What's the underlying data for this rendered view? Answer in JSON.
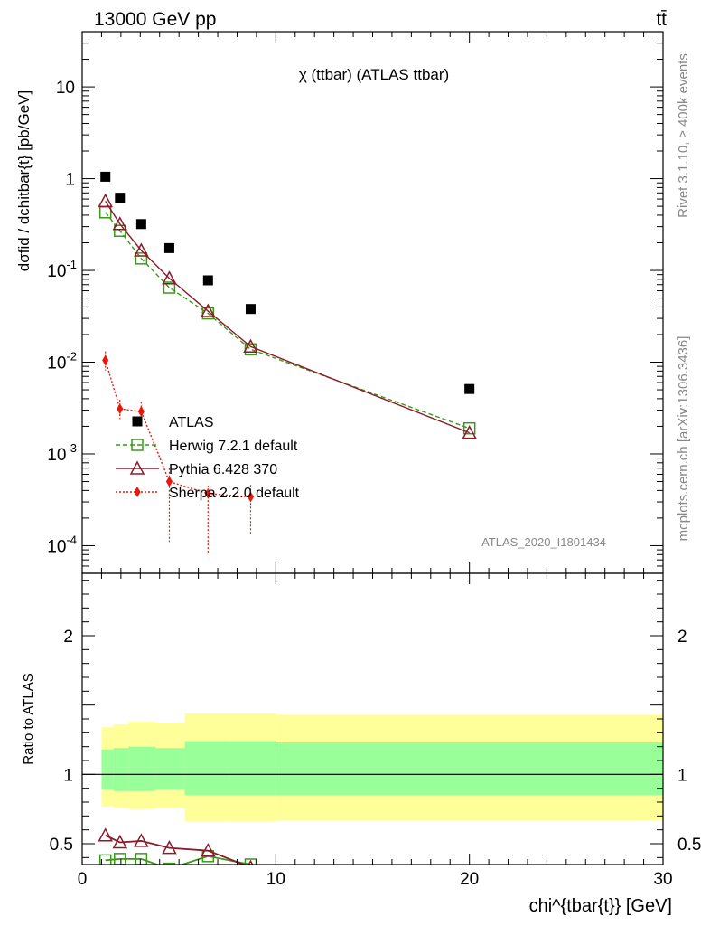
{
  "header": {
    "energy_label": "13000 GeV pp",
    "process_label": "tt̄",
    "plot_title": "χ (ttbar) (ATLAS ttbar)",
    "side_label_rivet": "Rivet 3.1.10, ≥ 400k events",
    "side_label_site": "mcplots.cern.ch [arXiv:1306.3436]",
    "analysis_id": "ATLAS_2020_I1801434"
  },
  "axes": {
    "main_ylabel": "dσfid / dchitbar{t} [pb/GeV]",
    "ratio_ylabel": "Ratio to ATLAS",
    "xlabel": "chi^{tbar{t}} [GeV]"
  },
  "chart_data": [
    {
      "type": "scatter",
      "panel": "main",
      "yscale": "log",
      "xlim": [
        0,
        30
      ],
      "ylim": [
        5e-05,
        40
      ],
      "x_ticks": [
        0,
        10,
        20,
        30
      ],
      "x_tick_labels": [
        "0",
        "10",
        "20",
        "30"
      ],
      "y_ticks": [
        0.0001,
        0.001,
        0.01,
        0.1,
        1,
        10
      ],
      "y_tick_labels": [
        "10^-4",
        "10^-3",
        "10^-2",
        "10^-1",
        "1",
        "10"
      ],
      "legend_position": "bottom-left",
      "series": [
        {
          "name": "ATLAS",
          "color": "#000000",
          "marker": "square",
          "x": [
            1.2,
            1.95,
            3.05,
            4.5,
            6.5,
            8.7,
            20.0
          ],
          "y": [
            1.05,
            0.62,
            0.32,
            0.175,
            0.078,
            0.038,
            0.0051
          ]
        },
        {
          "name": "Herwig 7.2.1 default",
          "color": "#3a9a18",
          "marker": "open-square",
          "line": "dashed",
          "x": [
            1.2,
            1.95,
            3.05,
            4.5,
            6.5,
            8.7,
            20.0
          ],
          "y": [
            0.43,
            0.27,
            0.135,
            0.065,
            0.034,
            0.0138,
            0.0019
          ]
        },
        {
          "name": "Pythia 6.428 370",
          "color": "#8b1a2a",
          "marker": "open-triangle",
          "line": "solid",
          "x": [
            1.2,
            1.95,
            3.05,
            4.5,
            6.5,
            8.7,
            20.0
          ],
          "y": [
            0.57,
            0.32,
            0.165,
            0.082,
            0.036,
            0.0148,
            0.0017
          ]
        },
        {
          "name": "Sherpa 2.2.0 default",
          "color": "#e8180c",
          "marker": "diamond",
          "line": "dotted",
          "x": [
            1.2,
            1.95,
            3.05,
            4.5,
            6.5,
            8.7
          ],
          "y": [
            0.0105,
            0.0031,
            0.0029,
            0.0005,
            0.00037,
            0.00034
          ],
          "yerr_low": [
            0.0024,
            0.0007,
            0.0009,
            0.00039,
            0.00029,
            0.00021
          ],
          "yerr_high": [
            0.0026,
            0.0008,
            0.0008,
            0.0002,
            8e-05,
            0.00012
          ]
        }
      ]
    },
    {
      "type": "line",
      "panel": "ratio",
      "xlim": [
        0,
        30
      ],
      "ylim": [
        0.35,
        2.45
      ],
      "y_ticks": [
        0.5,
        1,
        2
      ],
      "y_tick_labels": [
        "0.5",
        "1",
        "2"
      ],
      "bands": {
        "x_edges": [
          1,
          1.6,
          2.4,
          3.8,
          5.3,
          7.6,
          10,
          30
        ],
        "outer_low": [
          0.77,
          0.76,
          0.75,
          0.76,
          0.66,
          0.66,
          0.67
        ],
        "outer_high": [
          1.34,
          1.36,
          1.38,
          1.37,
          1.44,
          1.44,
          1.43
        ],
        "inner_low": [
          0.89,
          0.88,
          0.88,
          0.89,
          0.85,
          0.85,
          0.85
        ],
        "inner_high": [
          1.18,
          1.19,
          1.2,
          1.19,
          1.24,
          1.24,
          1.23
        ],
        "outer_color": "#ffff99",
        "inner_color": "#99ff99"
      },
      "series": [
        {
          "name": "Herwig 7.2.1 default",
          "color": "#3a9a18",
          "x": [
            1.2,
            1.95,
            3.05,
            4.5,
            6.5,
            8.7
          ],
          "y": [
            0.38,
            0.39,
            0.39,
            0.32,
            0.41,
            0.35
          ]
        },
        {
          "name": "Pythia 6.428 370",
          "color": "#8b1a2a",
          "x": [
            1.2,
            1.95,
            3.05,
            4.5,
            6.5,
            8.7
          ],
          "y": [
            0.56,
            0.51,
            0.52,
            0.47,
            0.45,
            0.33
          ]
        }
      ]
    }
  ]
}
